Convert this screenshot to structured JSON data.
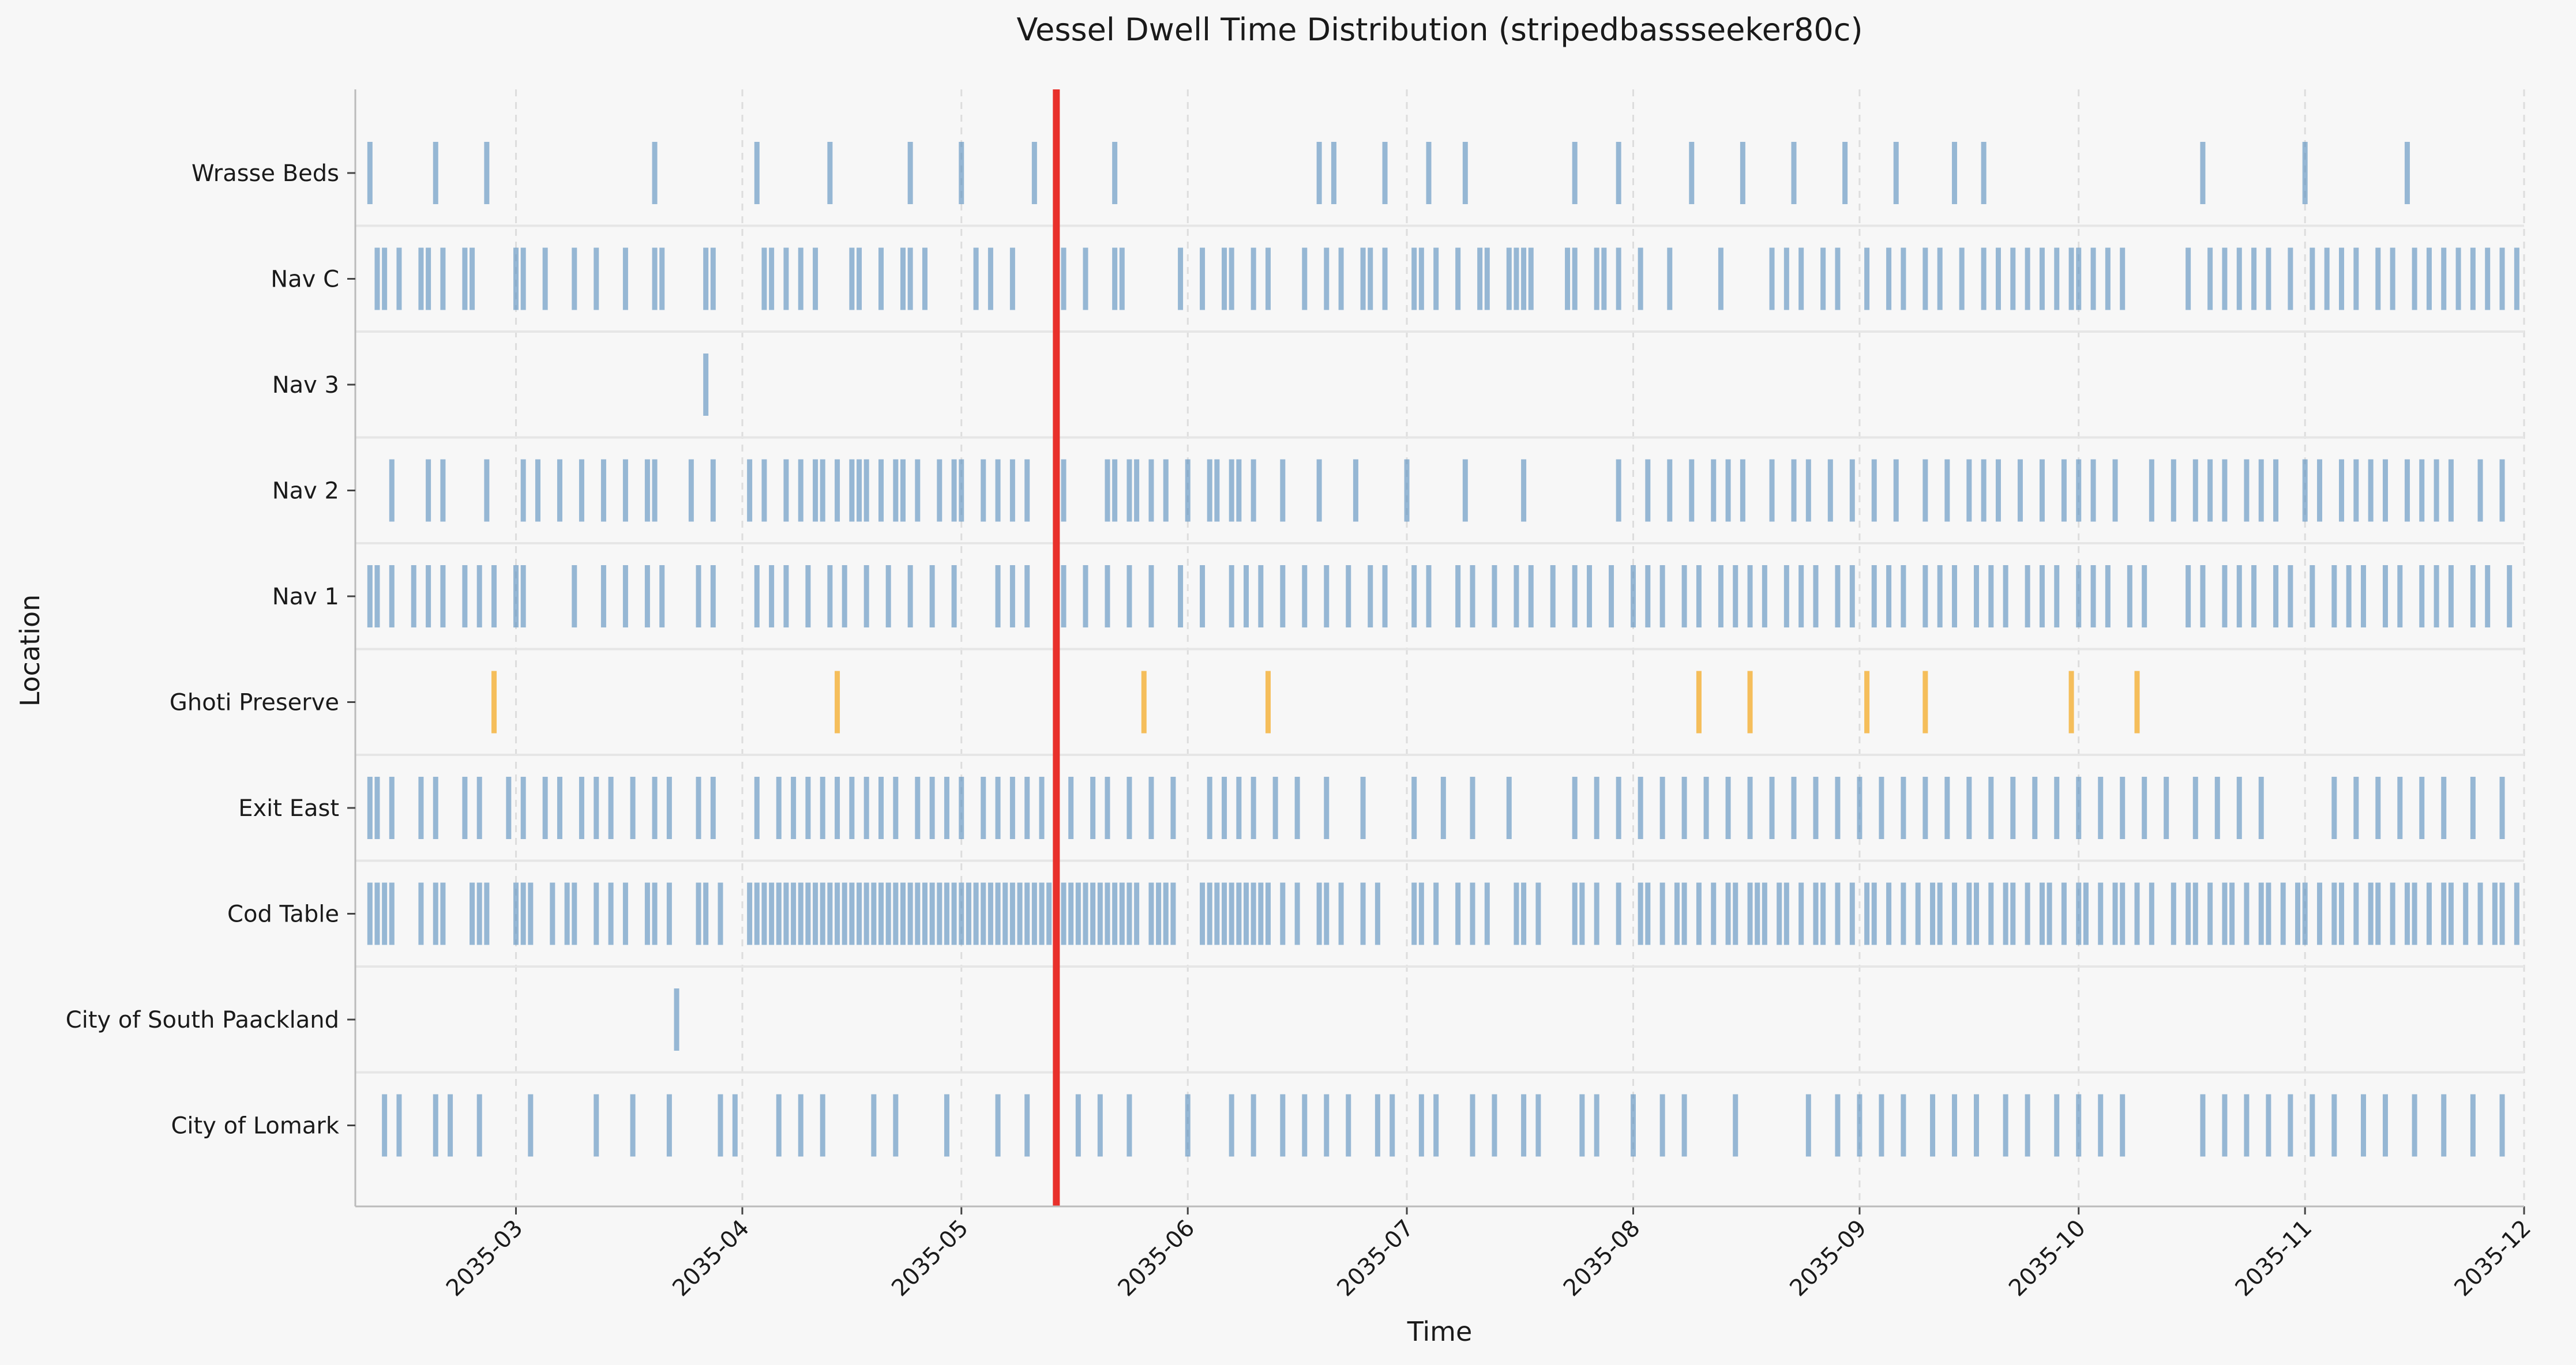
{
  "chart_data": {
    "type": "event_strip",
    "title": "Vessel Dwell Time Distribution (stripedbassseeker80c)",
    "xlabel": "Time",
    "ylabel": "Location",
    "xlim": [
      "2035-02-07",
      "2035-12-01"
    ],
    "x_ticks": [
      "2035-03",
      "2035-04",
      "2035-05",
      "2035-06",
      "2035-07",
      "2035-08",
      "2035-09",
      "2035-10",
      "2035-11",
      "2035-12"
    ],
    "grid": "vertical dashed",
    "highlight_line": {
      "date": "2035-05-14",
      "color": "#e8302b"
    },
    "colors": {
      "normal": "#5b8fbf",
      "highlight": "#f5b440"
    },
    "categories": [
      "Wrasse Beds",
      "Nav C",
      "Nav 3",
      "Nav 2",
      "Nav 1",
      "Ghoti Preserve",
      "Exit East",
      "Cod Table",
      "City of South Paackland",
      "City of Lomark"
    ],
    "series": [
      {
        "location": "Wrasse Beds",
        "color": "normal",
        "events": [
          "2035-02-09",
          "2035-02-18",
          "2035-02-25",
          "2035-03-20",
          "2035-04-03",
          "2035-04-13",
          "2035-04-24",
          "2035-05-01",
          "2035-05-11",
          "2035-05-22",
          "2035-06-19",
          "2035-06-21",
          "2035-06-28",
          "2035-07-04",
          "2035-07-09",
          "2035-07-24",
          "2035-07-30",
          "2035-08-09",
          "2035-08-16",
          "2035-08-23",
          "2035-08-30",
          "2035-09-06",
          "2035-09-14",
          "2035-09-18",
          "2035-10-18",
          "2035-11-01",
          "2035-11-15"
        ]
      },
      {
        "location": "Nav C",
        "color": "normal",
        "events": [
          "2035-02-10",
          "2035-02-11",
          "2035-02-13",
          "2035-02-16",
          "2035-02-17",
          "2035-02-19",
          "2035-02-22",
          "2035-02-23",
          "2035-03-01",
          "2035-03-02",
          "2035-03-05",
          "2035-03-09",
          "2035-03-12",
          "2035-03-16",
          "2035-03-20",
          "2035-03-21",
          "2035-03-27",
          "2035-03-28",
          "2035-04-04",
          "2035-04-05",
          "2035-04-07",
          "2035-04-09",
          "2035-04-11",
          "2035-04-16",
          "2035-04-17",
          "2035-04-20",
          "2035-04-23",
          "2035-04-24",
          "2035-04-26",
          "2035-05-03",
          "2035-05-05",
          "2035-05-08",
          "2035-05-15",
          "2035-05-18",
          "2035-05-22",
          "2035-05-23",
          "2035-05-31",
          "2035-06-03",
          "2035-06-06",
          "2035-06-07",
          "2035-06-10",
          "2035-06-12",
          "2035-06-17",
          "2035-06-20",
          "2035-06-22",
          "2035-06-25",
          "2035-06-26",
          "2035-06-28",
          "2035-07-02",
          "2035-07-03",
          "2035-07-05",
          "2035-07-08",
          "2035-07-11",
          "2035-07-12",
          "2035-07-15",
          "2035-07-16",
          "2035-07-17",
          "2035-07-18",
          "2035-07-23",
          "2035-07-24",
          "2035-07-27",
          "2035-07-28",
          "2035-07-30",
          "2035-08-02",
          "2035-08-06",
          "2035-08-13",
          "2035-08-20",
          "2035-08-22",
          "2035-08-24",
          "2035-08-27",
          "2035-08-29",
          "2035-09-02",
          "2035-09-05",
          "2035-09-07",
          "2035-09-10",
          "2035-09-12",
          "2035-09-15",
          "2035-09-18",
          "2035-09-20",
          "2035-09-22",
          "2035-09-24",
          "2035-09-26",
          "2035-09-28",
          "2035-09-30",
          "2035-10-01",
          "2035-10-03",
          "2035-10-05",
          "2035-10-07",
          "2035-10-16",
          "2035-10-19",
          "2035-10-21",
          "2035-10-23",
          "2035-10-25",
          "2035-10-27",
          "2035-10-30",
          "2035-11-02",
          "2035-11-04",
          "2035-11-06",
          "2035-11-08",
          "2035-11-11",
          "2035-11-13",
          "2035-11-16",
          "2035-11-18",
          "2035-11-20",
          "2035-11-22",
          "2035-11-24",
          "2035-11-26",
          "2035-11-28",
          "2035-11-30"
        ]
      },
      {
        "location": "Nav 3",
        "color": "normal",
        "events": [
          "2035-03-27"
        ]
      },
      {
        "location": "Nav 2",
        "color": "normal",
        "events": [
          "2035-02-12",
          "2035-02-17",
          "2035-02-19",
          "2035-02-25",
          "2035-03-02",
          "2035-03-04",
          "2035-03-07",
          "2035-03-10",
          "2035-03-13",
          "2035-03-16",
          "2035-03-19",
          "2035-03-20",
          "2035-03-25",
          "2035-03-28",
          "2035-04-02",
          "2035-04-04",
          "2035-04-07",
          "2035-04-09",
          "2035-04-11",
          "2035-04-12",
          "2035-04-14",
          "2035-04-16",
          "2035-04-17",
          "2035-04-18",
          "2035-04-20",
          "2035-04-22",
          "2035-04-23",
          "2035-04-25",
          "2035-04-28",
          "2035-04-30",
          "2035-05-01",
          "2035-05-04",
          "2035-05-06",
          "2035-05-08",
          "2035-05-10",
          "2035-05-14",
          "2035-05-15",
          "2035-05-21",
          "2035-05-22",
          "2035-05-24",
          "2035-05-25",
          "2035-05-27",
          "2035-05-29",
          "2035-06-01",
          "2035-06-04",
          "2035-06-05",
          "2035-06-07",
          "2035-06-08",
          "2035-06-10",
          "2035-06-14",
          "2035-06-19",
          "2035-06-24",
          "2035-07-01",
          "2035-07-09",
          "2035-07-17",
          "2035-07-30",
          "2035-08-03",
          "2035-08-06",
          "2035-08-09",
          "2035-08-12",
          "2035-08-14",
          "2035-08-16",
          "2035-08-20",
          "2035-08-23",
          "2035-08-25",
          "2035-08-28",
          "2035-08-31",
          "2035-09-03",
          "2035-09-06",
          "2035-09-10",
          "2035-09-13",
          "2035-09-16",
          "2035-09-18",
          "2035-09-20",
          "2035-09-23",
          "2035-09-26",
          "2035-09-29",
          "2035-10-01",
          "2035-10-03",
          "2035-10-06",
          "2035-10-11",
          "2035-10-14",
          "2035-10-17",
          "2035-10-19",
          "2035-10-21",
          "2035-10-24",
          "2035-10-26",
          "2035-10-28",
          "2035-11-01",
          "2035-11-03",
          "2035-11-06",
          "2035-11-08",
          "2035-11-10",
          "2035-11-12",
          "2035-11-15",
          "2035-11-17",
          "2035-11-19",
          "2035-11-21",
          "2035-11-25",
          "2035-11-28"
        ]
      },
      {
        "location": "Nav 1",
        "color": "normal",
        "events": [
          "2035-02-09",
          "2035-02-10",
          "2035-02-12",
          "2035-02-15",
          "2035-02-17",
          "2035-02-19",
          "2035-02-22",
          "2035-02-24",
          "2035-02-26",
          "2035-03-01",
          "2035-03-02",
          "2035-03-09",
          "2035-03-13",
          "2035-03-16",
          "2035-03-19",
          "2035-03-21",
          "2035-03-26",
          "2035-03-28",
          "2035-04-03",
          "2035-04-05",
          "2035-04-07",
          "2035-04-10",
          "2035-04-13",
          "2035-04-15",
          "2035-04-18",
          "2035-04-21",
          "2035-04-24",
          "2035-04-27",
          "2035-04-30",
          "2035-05-06",
          "2035-05-08",
          "2035-05-10",
          "2035-05-15",
          "2035-05-18",
          "2035-05-21",
          "2035-05-24",
          "2035-05-27",
          "2035-05-31",
          "2035-06-03",
          "2035-06-07",
          "2035-06-09",
          "2035-06-11",
          "2035-06-14",
          "2035-06-17",
          "2035-06-20",
          "2035-06-23",
          "2035-06-26",
          "2035-06-28",
          "2035-07-02",
          "2035-07-04",
          "2035-07-08",
          "2035-07-10",
          "2035-07-13",
          "2035-07-16",
          "2035-07-18",
          "2035-07-21",
          "2035-07-24",
          "2035-07-26",
          "2035-07-29",
          "2035-08-01",
          "2035-08-03",
          "2035-08-05",
          "2035-08-08",
          "2035-08-10",
          "2035-08-13",
          "2035-08-15",
          "2035-08-17",
          "2035-08-19",
          "2035-08-22",
          "2035-08-24",
          "2035-08-26",
          "2035-08-29",
          "2035-08-31",
          "2035-09-03",
          "2035-09-05",
          "2035-09-07",
          "2035-09-10",
          "2035-09-12",
          "2035-09-14",
          "2035-09-17",
          "2035-09-19",
          "2035-09-21",
          "2035-09-24",
          "2035-09-26",
          "2035-09-28",
          "2035-10-01",
          "2035-10-03",
          "2035-10-05",
          "2035-10-08",
          "2035-10-10",
          "2035-10-16",
          "2035-10-18",
          "2035-10-21",
          "2035-10-23",
          "2035-10-25",
          "2035-10-28",
          "2035-10-30",
          "2035-11-02",
          "2035-11-05",
          "2035-11-07",
          "2035-11-09",
          "2035-11-12",
          "2035-11-14",
          "2035-11-17",
          "2035-11-19",
          "2035-11-21",
          "2035-11-24",
          "2035-11-26",
          "2035-11-29"
        ]
      },
      {
        "location": "Ghoti Preserve",
        "color": "highlight",
        "events": [
          "2035-02-26",
          "2035-04-14",
          "2035-05-26",
          "2035-06-12",
          "2035-08-10",
          "2035-08-17",
          "2035-09-02",
          "2035-09-10",
          "2035-09-30",
          "2035-10-09"
        ]
      },
      {
        "location": "Exit East",
        "color": "normal",
        "events": [
          "2035-02-09",
          "2035-02-10",
          "2035-02-12",
          "2035-02-16",
          "2035-02-18",
          "2035-02-22",
          "2035-02-24",
          "2035-02-28",
          "2035-03-02",
          "2035-03-05",
          "2035-03-07",
          "2035-03-10",
          "2035-03-12",
          "2035-03-14",
          "2035-03-17",
          "2035-03-20",
          "2035-03-22",
          "2035-03-26",
          "2035-03-28",
          "2035-04-03",
          "2035-04-06",
          "2035-04-08",
          "2035-04-10",
          "2035-04-12",
          "2035-04-14",
          "2035-04-16",
          "2035-04-18",
          "2035-04-20",
          "2035-04-22",
          "2035-04-25",
          "2035-04-27",
          "2035-04-29",
          "2035-05-01",
          "2035-05-04",
          "2035-05-06",
          "2035-05-08",
          "2035-05-10",
          "2035-05-12",
          "2035-05-14",
          "2035-05-16",
          "2035-05-19",
          "2035-05-21",
          "2035-05-24",
          "2035-05-27",
          "2035-05-30",
          "2035-06-04",
          "2035-06-06",
          "2035-06-08",
          "2035-06-10",
          "2035-06-13",
          "2035-06-16",
          "2035-06-20",
          "2035-06-25",
          "2035-07-02",
          "2035-07-06",
          "2035-07-10",
          "2035-07-15",
          "2035-07-24",
          "2035-07-27",
          "2035-07-30",
          "2035-08-02",
          "2035-08-05",
          "2035-08-08",
          "2035-08-11",
          "2035-08-14",
          "2035-08-17",
          "2035-08-20",
          "2035-08-23",
          "2035-08-26",
          "2035-08-29",
          "2035-09-01",
          "2035-09-04",
          "2035-09-07",
          "2035-09-10",
          "2035-09-13",
          "2035-09-16",
          "2035-09-19",
          "2035-09-22",
          "2035-09-25",
          "2035-09-28",
          "2035-10-01",
          "2035-10-04",
          "2035-10-07",
          "2035-10-10",
          "2035-10-13",
          "2035-10-17",
          "2035-10-20",
          "2035-10-23",
          "2035-10-26",
          "2035-11-05",
          "2035-11-08",
          "2035-11-11",
          "2035-11-14",
          "2035-11-17",
          "2035-11-20",
          "2035-11-24",
          "2035-11-28"
        ]
      },
      {
        "location": "Cod Table",
        "color": "normal",
        "events": [
          "2035-02-09",
          "2035-02-10",
          "2035-02-11",
          "2035-02-12",
          "2035-02-16",
          "2035-02-18",
          "2035-02-19",
          "2035-02-23",
          "2035-02-24",
          "2035-02-25",
          "2035-03-01",
          "2035-03-02",
          "2035-03-03",
          "2035-03-06",
          "2035-03-08",
          "2035-03-09",
          "2035-03-12",
          "2035-03-14",
          "2035-03-16",
          "2035-03-19",
          "2035-03-20",
          "2035-03-22",
          "2035-03-26",
          "2035-03-27",
          "2035-03-29",
          "2035-04-02",
          "2035-04-03",
          "2035-04-04",
          "2035-04-05",
          "2035-04-06",
          "2035-04-07",
          "2035-04-08",
          "2035-04-09",
          "2035-04-10",
          "2035-04-11",
          "2035-04-12",
          "2035-04-13",
          "2035-04-14",
          "2035-04-15",
          "2035-04-16",
          "2035-04-17",
          "2035-04-18",
          "2035-04-19",
          "2035-04-20",
          "2035-04-21",
          "2035-04-22",
          "2035-04-23",
          "2035-04-24",
          "2035-04-25",
          "2035-04-26",
          "2035-04-27",
          "2035-04-28",
          "2035-04-29",
          "2035-04-30",
          "2035-05-01",
          "2035-05-02",
          "2035-05-03",
          "2035-05-04",
          "2035-05-05",
          "2035-05-06",
          "2035-05-07",
          "2035-05-08",
          "2035-05-09",
          "2035-05-10",
          "2035-05-11",
          "2035-05-12",
          "2035-05-13",
          "2035-05-14",
          "2035-05-15",
          "2035-05-16",
          "2035-05-17",
          "2035-05-18",
          "2035-05-19",
          "2035-05-20",
          "2035-05-21",
          "2035-05-22",
          "2035-05-23",
          "2035-05-24",
          "2035-05-25",
          "2035-05-27",
          "2035-05-28",
          "2035-05-29",
          "2035-05-30",
          "2035-06-03",
          "2035-06-04",
          "2035-06-05",
          "2035-06-06",
          "2035-06-07",
          "2035-06-08",
          "2035-06-09",
          "2035-06-10",
          "2035-06-11",
          "2035-06-12",
          "2035-06-14",
          "2035-06-16",
          "2035-06-19",
          "2035-06-20",
          "2035-06-22",
          "2035-06-25",
          "2035-06-27",
          "2035-07-02",
          "2035-07-03",
          "2035-07-05",
          "2035-07-08",
          "2035-07-10",
          "2035-07-12",
          "2035-07-16",
          "2035-07-17",
          "2035-07-19",
          "2035-07-24",
          "2035-07-25",
          "2035-07-27",
          "2035-07-30",
          "2035-08-02",
          "2035-08-03",
          "2035-08-05",
          "2035-08-07",
          "2035-08-08",
          "2035-08-10",
          "2035-08-12",
          "2035-08-14",
          "2035-08-15",
          "2035-08-17",
          "2035-08-18",
          "2035-08-19",
          "2035-08-21",
          "2035-08-22",
          "2035-08-24",
          "2035-08-26",
          "2035-08-27",
          "2035-08-29",
          "2035-08-31",
          "2035-09-02",
          "2035-09-03",
          "2035-09-05",
          "2035-09-07",
          "2035-09-09",
          "2035-09-11",
          "2035-09-12",
          "2035-09-14",
          "2035-09-16",
          "2035-09-17",
          "2035-09-19",
          "2035-09-21",
          "2035-09-22",
          "2035-09-24",
          "2035-09-26",
          "2035-09-27",
          "2035-09-29",
          "2035-10-01",
          "2035-10-02",
          "2035-10-04",
          "2035-10-06",
          "2035-10-07",
          "2035-10-09",
          "2035-10-11",
          "2035-10-14",
          "2035-10-16",
          "2035-10-17",
          "2035-10-19",
          "2035-10-21",
          "2035-10-22",
          "2035-10-24",
          "2035-10-26",
          "2035-10-27",
          "2035-10-29",
          "2035-10-31",
          "2035-11-01",
          "2035-11-03",
          "2035-11-05",
          "2035-11-06",
          "2035-11-08",
          "2035-11-10",
          "2035-11-11",
          "2035-11-13",
          "2035-11-15",
          "2035-11-16",
          "2035-11-18",
          "2035-11-20",
          "2035-11-21",
          "2035-11-23",
          "2035-11-25",
          "2035-11-27",
          "2035-11-28",
          "2035-11-30"
        ]
      },
      {
        "location": "City of South Paackland",
        "color": "normal",
        "events": [
          "2035-03-23"
        ]
      },
      {
        "location": "City of Lomark",
        "color": "normal",
        "events": [
          "2035-02-11",
          "2035-02-13",
          "2035-02-18",
          "2035-02-20",
          "2035-02-24",
          "2035-03-03",
          "2035-03-12",
          "2035-03-17",
          "2035-03-22",
          "2035-03-29",
          "2035-03-31",
          "2035-04-06",
          "2035-04-09",
          "2035-04-12",
          "2035-04-19",
          "2035-04-22",
          "2035-04-29",
          "2035-05-06",
          "2035-05-10",
          "2035-05-17",
          "2035-05-20",
          "2035-05-24",
          "2035-06-01",
          "2035-06-07",
          "2035-06-10",
          "2035-06-14",
          "2035-06-17",
          "2035-06-20",
          "2035-06-23",
          "2035-06-27",
          "2035-06-29",
          "2035-07-03",
          "2035-07-05",
          "2035-07-10",
          "2035-07-13",
          "2035-07-17",
          "2035-07-19",
          "2035-07-25",
          "2035-07-27",
          "2035-08-01",
          "2035-08-05",
          "2035-08-08",
          "2035-08-15",
          "2035-08-25",
          "2035-08-29",
          "2035-09-01",
          "2035-09-04",
          "2035-09-07",
          "2035-09-11",
          "2035-09-14",
          "2035-09-17",
          "2035-09-21",
          "2035-09-24",
          "2035-09-28",
          "2035-10-01",
          "2035-10-04",
          "2035-10-07",
          "2035-10-18",
          "2035-10-21",
          "2035-10-24",
          "2035-10-27",
          "2035-10-30",
          "2035-11-02",
          "2035-11-05",
          "2035-11-09",
          "2035-11-12",
          "2035-11-16",
          "2035-11-20",
          "2035-11-24",
          "2035-11-28"
        ]
      }
    ]
  }
}
